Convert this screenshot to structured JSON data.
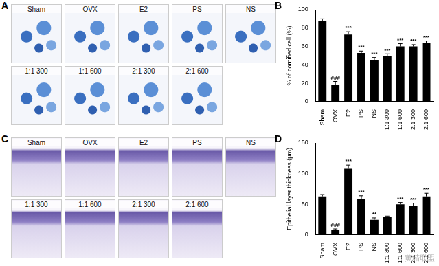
{
  "panels": [
    {
      "label": "A",
      "kind": "smear",
      "images": [
        "Sham",
        "OVX",
        "E2",
        "PS",
        "NS",
        "1:1 300",
        "1:1 600",
        "2:1 300",
        "2:1 600"
      ]
    },
    {
      "label": "C",
      "kind": "tissue",
      "images": [
        "Sham",
        "OVX",
        "E2",
        "PS",
        "NS",
        "1:1 300",
        "1:1 600",
        "2:1 300",
        "2:1 600"
      ]
    }
  ],
  "chart_data": [
    {
      "type": "bar",
      "title": "B",
      "y_label": "% of cornified cell (%)",
      "categories": [
        "Sham",
        "OVX",
        "E2",
        "PS",
        "NS",
        "1:1 300",
        "1:1 600",
        "2:1 300",
        "2:1 600"
      ],
      "values": [
        88,
        18,
        73,
        53,
        45,
        50,
        60,
        60,
        64
      ],
      "errors": [
        2,
        4,
        3,
        2,
        3,
        2,
        3,
        2,
        2
      ],
      "annotations": [
        null,
        "###",
        "***",
        "***",
        "***",
        "***",
        "***",
        "***",
        "***"
      ],
      "color": "#000000",
      "ylim": [
        0,
        100
      ],
      "yticks": [
        0,
        20,
        40,
        60,
        80,
        100
      ],
      "grid": false
    },
    {
      "type": "bar",
      "title": "D",
      "y_label": "Epithelial layer thickness (μm)",
      "categories": [
        "Sham",
        "OVX",
        "E2",
        "PS",
        "NS",
        "1:1 300",
        "1:1 600",
        "2:1 300",
        "2:1 600"
      ],
      "values": [
        63,
        8,
        108,
        59,
        25,
        29,
        50,
        48,
        63
      ],
      "errors": [
        3,
        2,
        6,
        5,
        3,
        2,
        3,
        4,
        5
      ],
      "annotations": [
        null,
        "###",
        "***",
        "***",
        "**",
        null,
        "***",
        "***",
        "***"
      ],
      "color": "#000000",
      "ylim": [
        0,
        150
      ],
      "yticks": [
        0,
        50,
        100,
        150
      ],
      "grid": false
    }
  ],
  "watermark": "黄精联盟"
}
